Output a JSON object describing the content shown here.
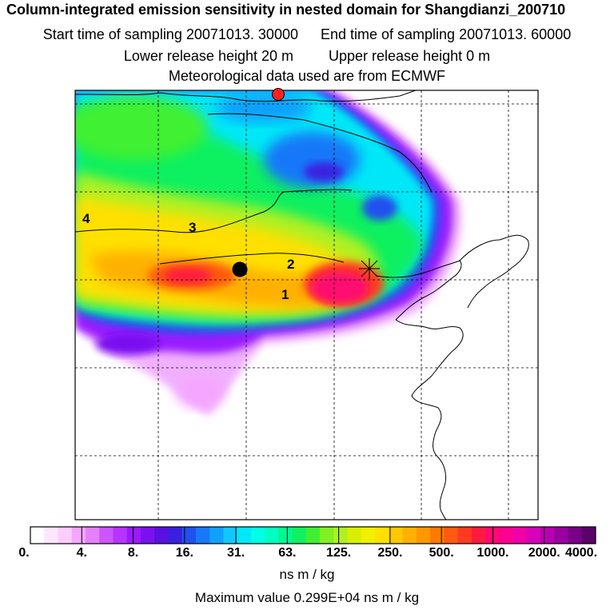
{
  "header": {
    "title": "Column-integrated emission sensitivity in nested domain for Shangdianzi_200710",
    "start": "Start time of sampling 20071013. 30000",
    "end": "End time of sampling 20071013. 60000",
    "lower": "Lower release height   20 m",
    "upper": "Upper release height    0 m",
    "met": "Meteorological data used are from ECMWF"
  },
  "map": {
    "number_labels": [
      "4",
      "3",
      "2",
      "1"
    ],
    "markers": [
      "red-station-dot",
      "black-station-dot",
      "release-star"
    ]
  },
  "colorbar": {
    "labels": [
      "0.",
      "4.",
      "8.",
      "16.",
      "31.",
      "63.",
      "125.",
      "250.",
      "500.",
      "1000.",
      "2000.",
      "4000."
    ],
    "colors": [
      "#ffffff",
      "#ffe6ff",
      "#ffccff",
      "#f5a6ff",
      "#e680ff",
      "#cc55ff",
      "#b833ff",
      "#9a1aff",
      "#7a10f0",
      "#5a10e0",
      "#3a20e0",
      "#2050f0",
      "#1878f8",
      "#10a0ff",
      "#10c8ff",
      "#00e8f8",
      "#00ffe8",
      "#00ffc0",
      "#00f890",
      "#10f060",
      "#40f030",
      "#80f020",
      "#b0f020",
      "#d8f000",
      "#f0f000",
      "#ffe000",
      "#ffc800",
      "#ffb000",
      "#ff9800",
      "#ff7a00",
      "#ff5a10",
      "#ff3a20",
      "#ff1a40",
      "#ff0a70",
      "#ff0090",
      "#f000a8",
      "#d800b8",
      "#b800b0",
      "#9a00a0",
      "#7a0088",
      "#5a0068"
    ],
    "units": "ns m / kg",
    "max_value": "Maximum value  0.299E+04 ns m / kg"
  }
}
